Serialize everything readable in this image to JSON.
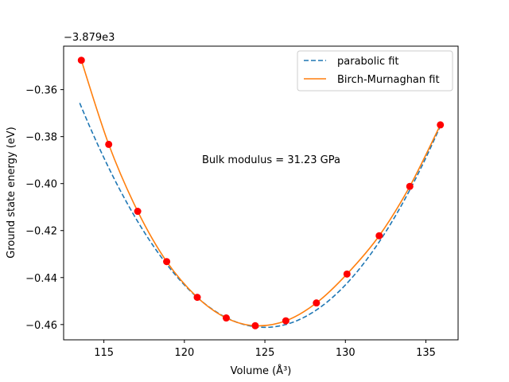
{
  "chart_data": {
    "type": "scatter",
    "title": "",
    "xlabel": "Volume (Å³)",
    "ylabel": "Ground state energy (eV)",
    "y_offset_label": "−3.879e3",
    "xlim": [
      112.5,
      137.0
    ],
    "ylim": [
      -0.4665,
      -0.3415
    ],
    "xticks": [
      115,
      120,
      125,
      130,
      135
    ],
    "yticks": [
      -0.46,
      -0.44,
      -0.42,
      -0.4,
      -0.38,
      -0.36
    ],
    "ytick_labels": [
      "−0.46",
      "−0.44",
      "−0.42",
      "−0.40",
      "−0.38",
      "−0.36"
    ],
    "annotation": "Bulk modulus = 31.23 GPa",
    "legend_position": "top-right",
    "colors": {
      "points": "#ff0000",
      "parabolic": "#1f77b4",
      "birch": "#ff7f0e"
    },
    "points": {
      "x": [
        113.6,
        115.3,
        117.1,
        118.9,
        120.8,
        122.6,
        124.4,
        126.3,
        128.2,
        130.1,
        132.1,
        134.0,
        135.9
      ],
      "y": [
        -0.3475,
        -0.3833,
        -0.4118,
        -0.4332,
        -0.4484,
        -0.4572,
        -0.4605,
        -0.4584,
        -0.4508,
        -0.4385,
        -0.4222,
        -0.4012,
        -0.375
      ]
    },
    "series": [
      {
        "name": "parabolic fit",
        "style": "dashed",
        "model": "parabola",
        "x_range": [
          113.5,
          136.0
        ],
        "vertex_x": 125.0,
        "vertex_y": -0.4612,
        "curvature": 0.000722
      },
      {
        "name": "Birch-Murnaghan fit",
        "style": "solid",
        "model": "through-points",
        "x_range": [
          113.6,
          135.9
        ]
      }
    ]
  }
}
